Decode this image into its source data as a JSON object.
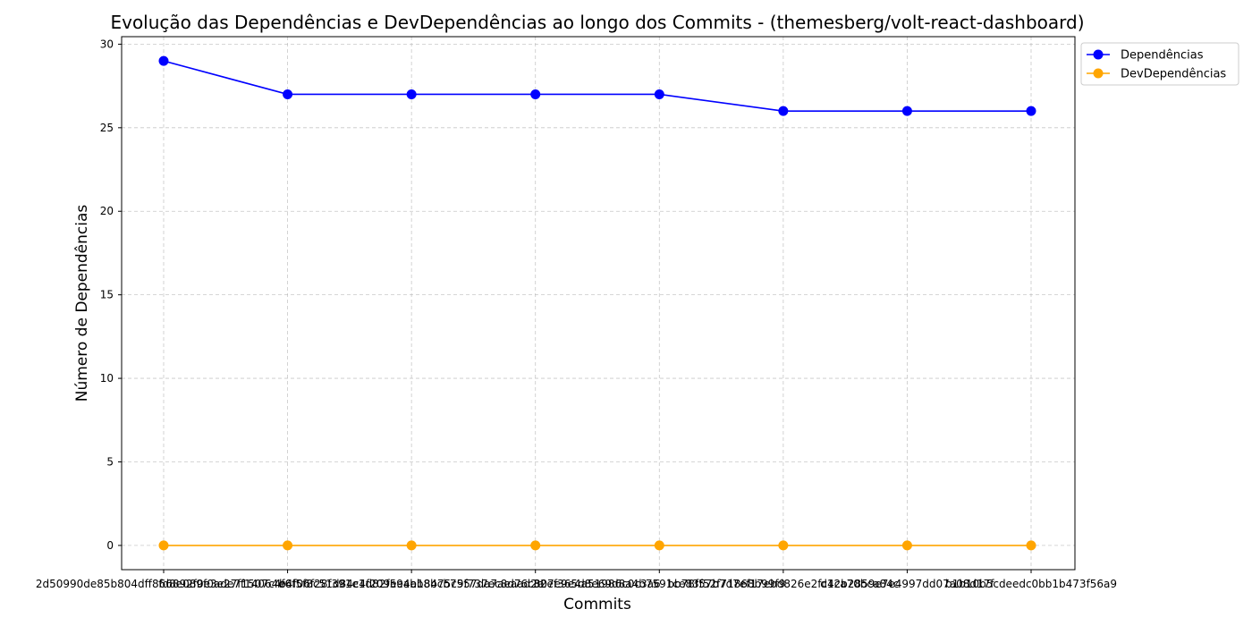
{
  "chart_data": {
    "type": "line",
    "title": "Evolução das Dependências e DevDependências ao longo dos Commits - (themesberg/volt-react-dashboard)",
    "xlabel": "Commits",
    "ylabel": "Número de Dependências",
    "categories": [
      "2d50990de85b804dff866892f0e3e27f1507c4f6",
      "fd8e089f0ade7f14064e6f5f8c51d84c4f209eeab",
      "b4f06f28f391e1d82f594eb8bcb7557da7aeaad2e",
      "a18475c9f737ec8d76c807e9e4a51986c0c3a6",
      "32ef365d8e69d8a4b7591ce83f52f71868b99f9",
      "bb78f57b7d7ef17ebd826e2fc4ca70bca84c",
      "d12b2859e7e4997dd07a08d17f",
      "b1b10b5cdeedc0bb1b473f56a9"
    ],
    "series": [
      {
        "name": "Dependências",
        "color": "#0000ff",
        "values": [
          29,
          27,
          27,
          27,
          27,
          26,
          26,
          26
        ]
      },
      {
        "name": "DevDependências",
        "color": "#ffa500",
        "values": [
          0,
          0,
          0,
          0,
          0,
          0,
          0,
          0
        ]
      }
    ],
    "yticks": [
      0,
      5,
      10,
      15,
      20,
      25,
      30
    ],
    "ylim": [
      -1.45,
      30.45
    ],
    "grid": true,
    "legend_position": "top-right outside"
  }
}
